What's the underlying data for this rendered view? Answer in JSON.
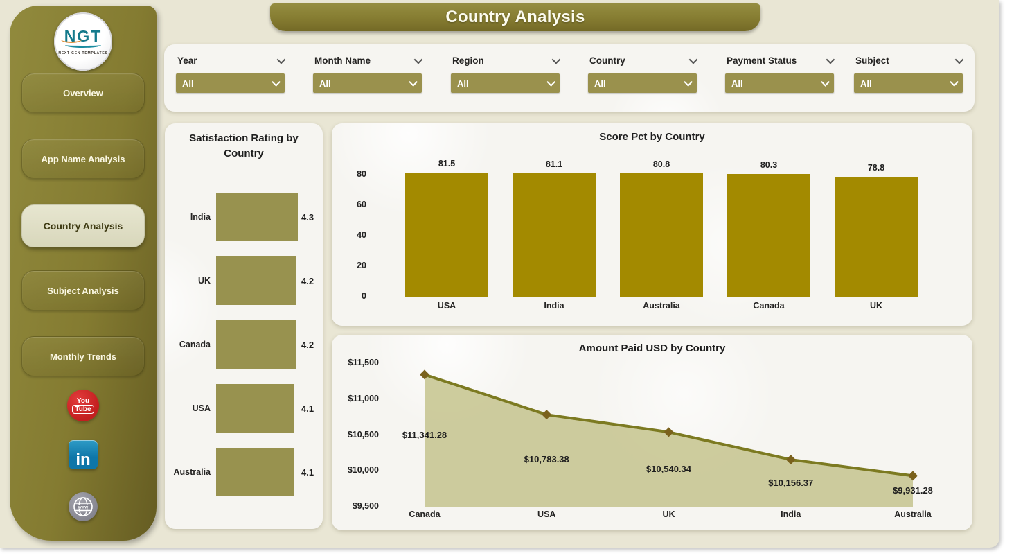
{
  "page": {
    "title": "Country Analysis"
  },
  "sidebar": {
    "logo": {
      "text": "NGT",
      "tagline": "NEXT GEN TEMPLATES"
    },
    "items": [
      {
        "label": "Overview",
        "active": false
      },
      {
        "label": "App Name Analysis",
        "active": false
      },
      {
        "label": "Country Analysis",
        "active": true
      },
      {
        "label": "Subject Analysis",
        "active": false
      },
      {
        "label": "Monthly Trends",
        "active": false
      }
    ],
    "social": {
      "youtube": {
        "line1": "You",
        "line2": "Tube"
      },
      "linkedin": {
        "text": "in"
      },
      "website": {
        "text": "www"
      }
    }
  },
  "filters": [
    {
      "label": "Year",
      "value": "All"
    },
    {
      "label": "Month Name",
      "value": "All"
    },
    {
      "label": "Region",
      "value": "All"
    },
    {
      "label": "Country",
      "value": "All"
    },
    {
      "label": "Payment Status",
      "value": "All"
    },
    {
      "label": "Subject",
      "value": "All"
    }
  ],
  "chart_data": [
    {
      "type": "bar",
      "orientation": "horizontal",
      "title": "Satisfaction Rating by Country",
      "categories": [
        "India",
        "UK",
        "Canada",
        "USA",
        "Australia"
      ],
      "values": [
        4.3,
        4.2,
        4.2,
        4.1,
        4.1
      ],
      "value_labels": [
        "4.3",
        "4.2",
        "4.2",
        "4.1",
        "4.1"
      ],
      "xlim": [
        0,
        4.3
      ],
      "bar_color": "#98924F",
      "grid": false,
      "legend": "none"
    },
    {
      "type": "bar",
      "orientation": "vertical",
      "title": "Score Pct by Country",
      "categories": [
        "USA",
        "India",
        "Australia",
        "Canada",
        "UK"
      ],
      "values": [
        81.5,
        81.1,
        80.8,
        80.3,
        78.8
      ],
      "value_labels": [
        "81.5",
        "81.1",
        "80.8",
        "80.3",
        "78.8"
      ],
      "yticks": [
        80,
        60,
        40,
        20,
        0
      ],
      "ylim": [
        0,
        88
      ],
      "bar_color": "#A38A00",
      "grid": false,
      "legend": "none"
    },
    {
      "type": "area",
      "title": "Amount Paid USD by Country",
      "categories": [
        "Canada",
        "USA",
        "UK",
        "India",
        "Australia"
      ],
      "values": [
        11341.28,
        10783.38,
        10540.34,
        10156.37,
        9931.28
      ],
      "value_labels": [
        "$11,341.28",
        "$10,783.38",
        "$10,540.34",
        "$10,156.37",
        "$9,931.28"
      ],
      "yticks": [
        "$11,500",
        "$11,000",
        "$10,500",
        "$10,000",
        "$9,500"
      ],
      "ylim": [
        9500,
        11500
      ],
      "line_color": "#7C7A21",
      "marker_color": "#7A611C",
      "fill_color": "#C8C694",
      "grid": false,
      "legend": "none"
    }
  ],
  "colors": {
    "canvas_bg": "#E9E6D4",
    "sidebar_olive": "#847B31",
    "panel_bg": "#F6F5F1",
    "dropdown_olive": "#9A914D",
    "bar_gold": "#A38A00",
    "bar_khaki": "#98924F",
    "area_line": "#7C7A21",
    "youtube_red": "#C21F1F",
    "linkedin_blue": "#0E76A8"
  }
}
